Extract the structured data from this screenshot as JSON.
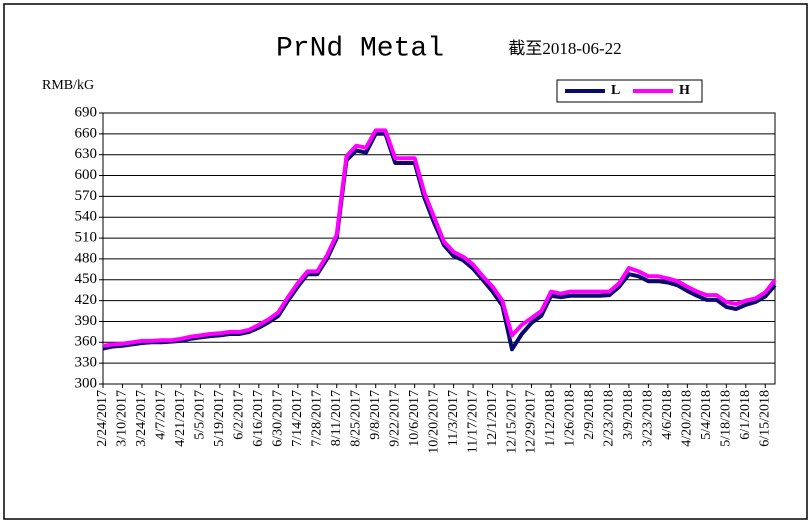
{
  "chart_data": {
    "type": "line",
    "title": "PrNd Metal",
    "subtitle": "截至2018-06-22",
    "y_label": "RMB/kG",
    "categories": [
      "2/24/2017",
      null,
      "3/10/2017",
      null,
      "3/24/2017",
      null,
      "4/7/2017",
      null,
      "4/21/2017",
      null,
      "5/5/2017",
      null,
      "5/19/2017",
      null,
      "6/2/2017",
      null,
      "6/16/2017",
      null,
      "6/30/2017",
      null,
      "7/14/2017",
      null,
      "7/28/2017",
      null,
      "8/11/2017",
      null,
      "8/25/2017",
      null,
      "9/8/2017",
      null,
      "9/22/2017",
      null,
      "10/6/2017",
      null,
      "10/20/2017",
      null,
      "11/3/2017",
      null,
      "11/17/2017",
      null,
      "12/1/2017",
      null,
      "12/15/2017",
      null,
      "12/29/2017",
      null,
      "1/12/2018",
      null,
      "1/26/2018",
      null,
      "2/9/2018",
      null,
      "2/23/2018",
      null,
      "3/9/2018",
      null,
      "3/23/2018",
      null,
      "4/6/2018",
      null,
      "4/20/2018",
      null,
      "5/4/2018",
      null,
      "5/18/2018",
      null,
      "6/1/2018",
      null,
      "6/15/2018",
      null
    ],
    "series": [
      {
        "name": "L",
        "color": "#0a0a6e",
        "values": [
          351,
          354,
          355,
          357,
          359,
          360,
          360,
          361,
          362,
          365,
          367,
          369,
          370,
          372,
          372,
          375,
          381,
          389,
          398,
          420,
          440,
          458,
          458,
          480,
          510,
          622,
          636,
          633,
          660,
          660,
          618,
          618,
          618,
          568,
          532,
          500,
          484,
          478,
          466,
          450,
          433,
          413,
          350,
          372,
          388,
          398,
          427,
          425,
          427,
          427,
          427,
          427,
          428,
          440,
          458,
          455,
          448,
          448,
          446,
          442,
          434,
          427,
          421,
          421,
          411,
          408,
          414,
          418,
          426,
          442
        ]
      },
      {
        "name": "H",
        "color": "#ff00ff",
        "values": [
          355,
          357,
          358,
          360,
          362,
          362,
          363,
          363,
          365,
          368,
          370,
          372,
          373,
          375,
          375,
          378,
          385,
          393,
          403,
          425,
          445,
          462,
          462,
          485,
          515,
          628,
          643,
          640,
          665,
          665,
          625,
          625,
          625,
          575,
          540,
          505,
          490,
          483,
          472,
          455,
          440,
          420,
          370,
          385,
          395,
          405,
          433,
          430,
          433,
          433,
          433,
          433,
          433,
          445,
          467,
          462,
          455,
          455,
          452,
          448,
          440,
          433,
          428,
          428,
          418,
          415,
          420,
          423,
          432,
          450
        ]
      }
    ],
    "ylim": [
      300,
      690
    ],
    "yticks": [
      300,
      330,
      360,
      390,
      420,
      450,
      480,
      510,
      540,
      570,
      600,
      630,
      660,
      690
    ],
    "grid": true,
    "legend": "top-right"
  }
}
